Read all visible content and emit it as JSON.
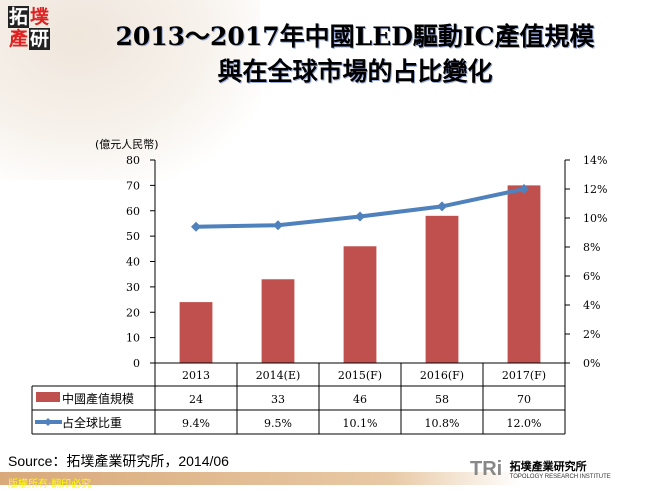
{
  "logo": {
    "chars": [
      "拓",
      "墣",
      "產",
      "研"
    ]
  },
  "title": {
    "line1": "2013～2017年中國LED驅動IC產值規模",
    "line2": "與在全球市場的占比變化"
  },
  "chart_data": {
    "type": "bar+line",
    "categories": [
      "2013",
      "2014(E)",
      "2015(F)",
      "2016(F)",
      "2017(F)"
    ],
    "series": [
      {
        "name": "中國產值規模",
        "type": "bar",
        "axis": "left",
        "values": [
          24,
          33,
          46,
          58,
          70
        ],
        "color": "#c0504d",
        "labels": [
          "24",
          "33",
          "46",
          "58",
          "70"
        ]
      },
      {
        "name": "占全球比重",
        "type": "line",
        "axis": "right",
        "values": [
          9.4,
          9.5,
          10.1,
          10.8,
          12.0
        ],
        "color": "#4f81bd",
        "labels": [
          "9.4%",
          "9.5%",
          "10.1%",
          "10.8%",
          "12.0%"
        ]
      }
    ],
    "ylabel": "(億元人民幣)",
    "ylim": [
      0,
      80
    ],
    "yticks": [
      "0",
      "10",
      "20",
      "30",
      "40",
      "50",
      "60",
      "70",
      "80"
    ],
    "y2lim": [
      0,
      14
    ],
    "y2ticks": [
      "0%",
      "2%",
      "4%",
      "6%",
      "8%",
      "10%",
      "12%",
      "14%"
    ],
    "data_table": true
  },
  "source": "Source：拓墣產業研究所，2014/06",
  "footer": "版權所有‧翻印必究",
  "brand": {
    "mark": "TRi",
    "name": "拓墣產業研究所",
    "sub": "TOPOLOGY RESEARCH INSTITUTE"
  }
}
